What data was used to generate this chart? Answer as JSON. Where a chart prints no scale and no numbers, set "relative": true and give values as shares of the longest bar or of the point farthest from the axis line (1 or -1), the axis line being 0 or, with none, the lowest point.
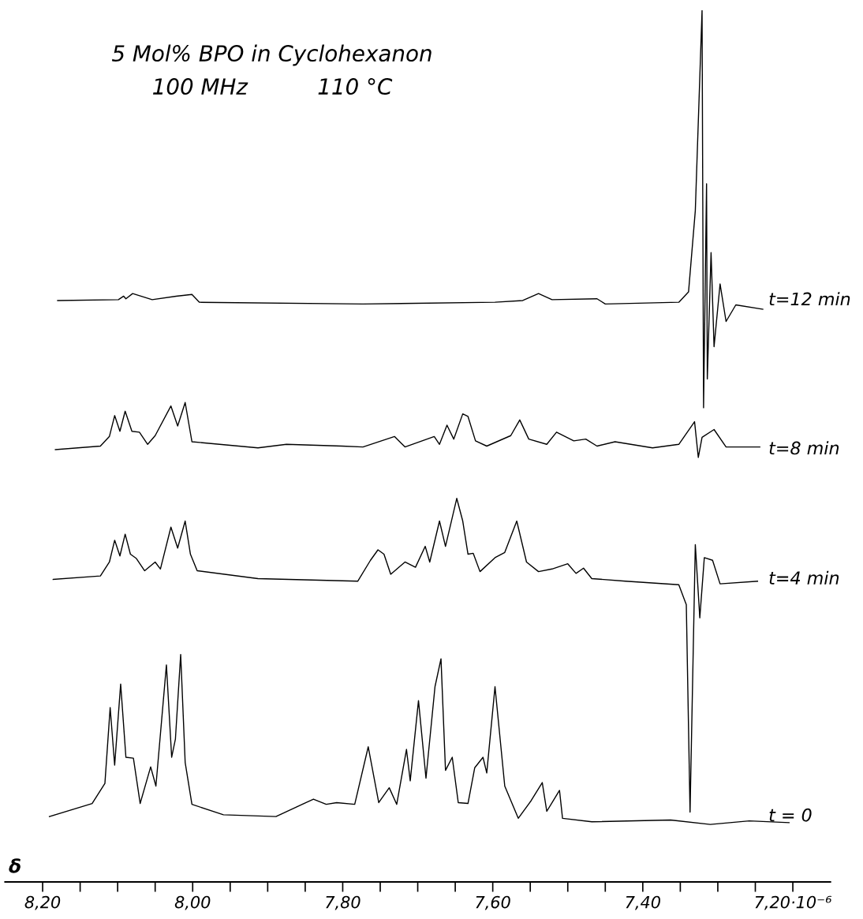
{
  "chart_data": {
    "type": "line",
    "relative": true,
    "title": "5 Mol% BPO in Cyclohexanon",
    "subtitle": "100 MHz          110 °C",
    "xlabel": "δ",
    "xlim": [
      8.25,
      7.15
    ],
    "xticks": [
      {
        "value": 8.2,
        "label": "8,20"
      },
      {
        "value": 8.15,
        "label": null
      },
      {
        "value": 8.1,
        "label": null
      },
      {
        "value": 8.05,
        "label": null
      },
      {
        "value": 8.0,
        "label": "8,00"
      },
      {
        "value": 7.95,
        "label": null
      },
      {
        "value": 7.9,
        "label": null
      },
      {
        "value": 7.85,
        "label": null
      },
      {
        "value": 7.8,
        "label": "7,80"
      },
      {
        "value": 7.75,
        "label": null
      },
      {
        "value": 7.7,
        "label": null
      },
      {
        "value": 7.65,
        "label": null
      },
      {
        "value": 7.6,
        "label": "7,60"
      },
      {
        "value": 7.55,
        "label": null
      },
      {
        "value": 7.5,
        "label": null
      },
      {
        "value": 7.45,
        "label": null
      },
      {
        "value": 7.4,
        "label": "7,40"
      },
      {
        "value": 7.35,
        "label": null
      },
      {
        "value": 7.3,
        "label": null
      },
      {
        "value": 7.25,
        "label": null
      },
      {
        "value": 7.2,
        "label": "7,20·10⁻⁶"
      }
    ],
    "series": [
      {
        "name": "t=12 min",
        "color": "#000000",
        "x": [
          8.18,
          8.099,
          8.092,
          8.089,
          8.08,
          8.054,
          8.022,
          8.001,
          7.991,
          7.773,
          7.597,
          7.56,
          7.539,
          7.521,
          7.461,
          7.45,
          7.352,
          7.339,
          7.33,
          7.321,
          7.319,
          7.315,
          7.314,
          7.309,
          7.305,
          7.297,
          7.289,
          7.276,
          7.24
        ],
        "values": [
          0.667,
          0.668,
          0.672,
          0.669,
          0.675,
          0.668,
          0.672,
          0.674,
          0.665,
          0.663,
          0.665,
          0.667,
          0.675,
          0.668,
          0.669,
          0.663,
          0.665,
          0.677,
          0.77,
          1.0,
          0.544,
          0.801,
          0.577,
          0.722,
          0.614,
          0.686,
          0.643,
          0.662,
          0.657
        ]
      },
      {
        "name": "t=8 min",
        "color": "#000000",
        "x": [
          8.183,
          8.123,
          8.111,
          8.104,
          8.097,
          8.09,
          8.081,
          8.071,
          8.06,
          8.05,
          8.029,
          8.02,
          8.01,
          8.001,
          7.913,
          7.875,
          7.801,
          7.773,
          7.731,
          7.717,
          7.678,
          7.671,
          7.661,
          7.652,
          7.64,
          7.633,
          7.623,
          7.608,
          7.576,
          7.564,
          7.552,
          7.528,
          7.515,
          7.492,
          7.476,
          7.461,
          7.437,
          7.387,
          7.352,
          7.331,
          7.326,
          7.321,
          7.305,
          7.289,
          7.244
        ],
        "values": [
          0.496,
          0.5,
          0.511,
          0.535,
          0.517,
          0.54,
          0.517,
          0.516,
          0.502,
          0.512,
          0.546,
          0.523,
          0.55,
          0.505,
          0.498,
          0.502,
          0.5,
          0.499,
          0.511,
          0.499,
          0.511,
          0.502,
          0.524,
          0.508,
          0.537,
          0.534,
          0.506,
          0.5,
          0.512,
          0.53,
          0.508,
          0.502,
          0.516,
          0.506,
          0.508,
          0.5,
          0.505,
          0.498,
          0.502,
          0.528,
          0.487,
          0.51,
          0.519,
          0.499,
          0.499
        ]
      },
      {
        "name": "t=4 min",
        "color": "#000000",
        "x": [
          8.186,
          8.123,
          8.111,
          8.104,
          8.097,
          8.09,
          8.083,
          8.075,
          8.064,
          8.05,
          8.043,
          8.029,
          8.02,
          8.01,
          8.003,
          7.994,
          7.913,
          7.78,
          7.763,
          7.753,
          7.745,
          7.736,
          7.717,
          7.703,
          7.69,
          7.684,
          7.671,
          7.663,
          7.648,
          7.64,
          7.633,
          7.626,
          7.617,
          7.597,
          7.584,
          7.568,
          7.555,
          7.539,
          7.521,
          7.5,
          7.489,
          7.479,
          7.468,
          7.423,
          7.352,
          7.342,
          7.337,
          7.33,
          7.324,
          7.318,
          7.307,
          7.297,
          7.247
        ],
        "values": [
          0.347,
          0.351,
          0.367,
          0.392,
          0.374,
          0.399,
          0.376,
          0.371,
          0.357,
          0.367,
          0.359,
          0.407,
          0.383,
          0.414,
          0.376,
          0.357,
          0.348,
          0.345,
          0.369,
          0.381,
          0.376,
          0.353,
          0.367,
          0.361,
          0.385,
          0.367,
          0.414,
          0.385,
          0.44,
          0.414,
          0.376,
          0.377,
          0.356,
          0.372,
          0.378,
          0.414,
          0.367,
          0.356,
          0.359,
          0.365,
          0.354,
          0.36,
          0.348,
          0.345,
          0.341,
          0.318,
          0.08,
          0.387,
          0.303,
          0.372,
          0.369,
          0.342,
          0.345
        ]
      },
      {
        "name": "t = 0",
        "color": "#000000",
        "x": [
          8.191,
          8.134,
          8.117,
          8.11,
          8.104,
          8.096,
          8.089,
          8.079,
          8.07,
          8.056,
          8.049,
          8.035,
          8.028,
          8.023,
          8.016,
          8.01,
          8.001,
          7.959,
          7.889,
          7.839,
          7.822,
          7.808,
          7.784,
          7.766,
          7.752,
          7.738,
          7.728,
          7.715,
          7.71,
          7.699,
          7.689,
          7.677,
          7.669,
          7.663,
          7.654,
          7.646,
          7.633,
          7.624,
          7.613,
          7.608,
          7.597,
          7.584,
          7.566,
          7.549,
          7.534,
          7.528,
          7.511,
          7.507,
          7.468,
          7.363,
          7.31,
          7.258,
          7.205
        ],
        "values": [
          0.075,
          0.09,
          0.113,
          0.2,
          0.134,
          0.227,
          0.143,
          0.142,
          0.09,
          0.132,
          0.11,
          0.249,
          0.143,
          0.164,
          0.261,
          0.137,
          0.089,
          0.077,
          0.075,
          0.095,
          0.089,
          0.091,
          0.089,
          0.155,
          0.091,
          0.108,
          0.089,
          0.152,
          0.116,
          0.208,
          0.119,
          0.224,
          0.256,
          0.128,
          0.143,
          0.091,
          0.09,
          0.131,
          0.143,
          0.125,
          0.224,
          0.11,
          0.073,
          0.093,
          0.114,
          0.081,
          0.105,
          0.073,
          0.069,
          0.071,
          0.066,
          0.07,
          0.068
        ]
      }
    ]
  }
}
